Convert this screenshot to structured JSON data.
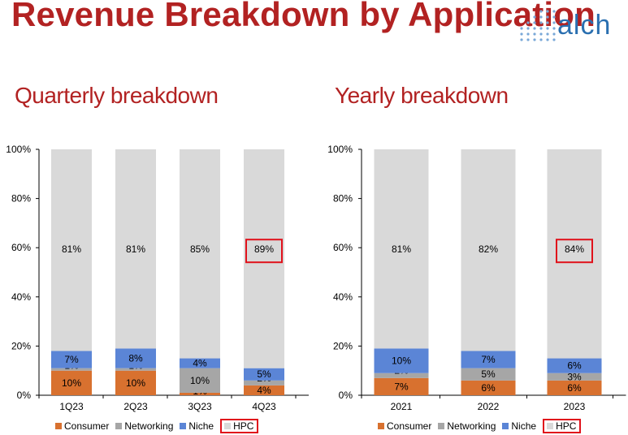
{
  "title": "Revenue Breakdown by Application",
  "logo": {
    "text": "alch"
  },
  "colors": {
    "Consumer": "#d8712f",
    "Networking": "#a6a6a6",
    "Niche": "#5b85d6",
    "HPC": "#d9d9d9",
    "title": "#b22222",
    "highlight": "#e0111b"
  },
  "charts": {
    "quarterly": {
      "subtitle": "Quarterly breakdown"
    },
    "yearly": {
      "subtitle": "Yearly breakdown"
    }
  },
  "chart_data": [
    {
      "type": "bar",
      "stacked": true,
      "title": "Quarterly breakdown",
      "categories": [
        "1Q23",
        "2Q23",
        "3Q23",
        "4Q23"
      ],
      "ylim": [
        0,
        100
      ],
      "yticks": [
        "0%",
        "20%",
        "40%",
        "60%",
        "80%",
        "100%"
      ],
      "grid": false,
      "legend_position": "bottom",
      "series": [
        {
          "name": "Consumer",
          "values": [
            10,
            10,
            1,
            4
          ],
          "labels": [
            "10%",
            "10%",
            "1%",
            "4%"
          ]
        },
        {
          "name": "Networking",
          "values": [
            1,
            1,
            10,
            2
          ],
          "labels": [
            "1%",
            "1%",
            "10%",
            "2%"
          ]
        },
        {
          "name": "Niche",
          "values": [
            7,
            8,
            4,
            5
          ],
          "labels": [
            "7%",
            "8%",
            "4%",
            "5%"
          ]
        },
        {
          "name": "HPC",
          "values": [
            81,
            81,
            85,
            89
          ],
          "labels": [
            "81%",
            "81%",
            "85%",
            "89%"
          ]
        }
      ],
      "highlighted_label": {
        "series": "HPC",
        "category": "4Q23"
      },
      "legend_highlight": "HPC"
    },
    {
      "type": "bar",
      "stacked": true,
      "title": "Yearly breakdown",
      "categories": [
        "2021",
        "2022",
        "2023"
      ],
      "ylim": [
        0,
        100
      ],
      "yticks": [
        "0%",
        "20%",
        "40%",
        "60%",
        "80%",
        "100%"
      ],
      "grid": false,
      "legend_position": "bottom",
      "series": [
        {
          "name": "Consumer",
          "values": [
            7,
            6,
            6
          ],
          "labels": [
            "7%",
            "6%",
            "6%"
          ]
        },
        {
          "name": "Networking",
          "values": [
            2,
            5,
            3
          ],
          "labels": [
            "2%",
            "5%",
            "3%"
          ]
        },
        {
          "name": "Niche",
          "values": [
            10,
            7,
            6
          ],
          "labels": [
            "10%",
            "7%",
            "6%"
          ]
        },
        {
          "name": "HPC",
          "values": [
            81,
            82,
            84
          ],
          "labels": [
            "81%",
            "82%",
            "84%"
          ]
        }
      ],
      "highlighted_label": {
        "series": "HPC",
        "category": "2023"
      },
      "legend_highlight": "HPC"
    }
  ]
}
